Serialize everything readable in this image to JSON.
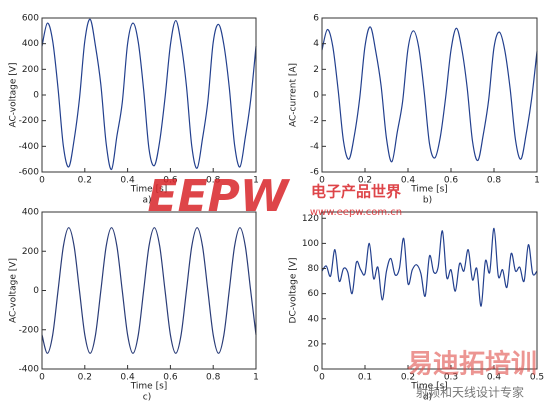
{
  "chart_data": [
    {
      "type": "line",
      "ylabel": "AC-voltage [V]",
      "xlabel": "Time [s]",
      "caption": "a)",
      "color": "#23408e",
      "xlim": [
        0,
        1
      ],
      "xticks": [
        0,
        0.2,
        0.4,
        0.6,
        0.8,
        1
      ],
      "ylim": [
        -600,
        600
      ],
      "yticks": [
        -600,
        -400,
        -200,
        0,
        200,
        400,
        600
      ],
      "x": [
        0,
        0.025,
        0.05,
        0.075,
        0.1,
        0.125,
        0.15,
        0.175,
        0.2,
        0.225,
        0.25,
        0.275,
        0.3,
        0.325,
        0.35,
        0.375,
        0.4,
        0.425,
        0.45,
        0.475,
        0.5,
        0.525,
        0.55,
        0.575,
        0.6,
        0.625,
        0.65,
        0.675,
        0.7,
        0.725,
        0.75,
        0.775,
        0.8,
        0.825,
        0.85,
        0.875,
        0.9,
        0.925,
        0.95,
        0.975,
        1
      ],
      "values": [
        380,
        560,
        420,
        50,
        -400,
        -560,
        -350,
        -30,
        420,
        590,
        380,
        80,
        -380,
        -580,
        -320,
        -60,
        400,
        560,
        410,
        40,
        -420,
        -550,
        -360,
        -20,
        390,
        580,
        400,
        70,
        -400,
        -570,
        -340,
        -50,
        410,
        550,
        390,
        60,
        -390,
        -560,
        -330,
        -40,
        380
      ]
    },
    {
      "type": "line",
      "ylabel": "AC-current [A]",
      "xlabel": "Time [s]",
      "caption": "b)",
      "color": "#23408e",
      "xlim": [
        0,
        1
      ],
      "xticks": [
        0,
        0.2,
        0.4,
        0.6,
        0.8,
        1
      ],
      "ylim": [
        -6,
        6
      ],
      "yticks": [
        -6,
        -4,
        -2,
        0,
        2,
        4,
        6
      ],
      "x": [
        0,
        0.025,
        0.05,
        0.075,
        0.1,
        0.125,
        0.15,
        0.175,
        0.2,
        0.225,
        0.25,
        0.275,
        0.3,
        0.325,
        0.35,
        0.375,
        0.4,
        0.425,
        0.45,
        0.475,
        0.5,
        0.525,
        0.55,
        0.575,
        0.6,
        0.625,
        0.65,
        0.675,
        0.7,
        0.725,
        0.75,
        0.775,
        0.8,
        0.825,
        0.85,
        0.875,
        0.9,
        0.925,
        0.95,
        0.975,
        1
      ],
      "values": [
        3.5,
        5.1,
        3.8,
        0.4,
        -3.6,
        -5.0,
        -3.2,
        -0.3,
        3.8,
        5.3,
        3.4,
        0.7,
        -3.4,
        -5.2,
        -2.9,
        -0.5,
        3.6,
        5.0,
        3.7,
        0.3,
        -3.8,
        -4.9,
        -3.3,
        -0.2,
        3.5,
        5.2,
        3.6,
        0.6,
        -3.6,
        -5.1,
        -3.1,
        -0.4,
        3.7,
        4.9,
        3.5,
        0.5,
        -3.5,
        -5.0,
        -3.0,
        -0.3,
        3.4
      ]
    },
    {
      "type": "line",
      "ylabel": "AC-voltage [V]",
      "xlabel": "Time [s]",
      "caption": "c)",
      "color": "#2b3d78",
      "xlim": [
        0,
        1
      ],
      "xticks": [
        0,
        0.2,
        0.4,
        0.6,
        0.8,
        1
      ],
      "ylim": [
        -400,
        400
      ],
      "yticks": [
        -400,
        -200,
        0,
        200,
        400
      ],
      "x": [
        0,
        0.025,
        0.05,
        0.075,
        0.1,
        0.125,
        0.15,
        0.175,
        0.2,
        0.225,
        0.25,
        0.275,
        0.3,
        0.325,
        0.35,
        0.375,
        0.4,
        0.425,
        0.45,
        0.475,
        0.5,
        0.525,
        0.55,
        0.575,
        0.6,
        0.625,
        0.65,
        0.675,
        0.7,
        0.725,
        0.75,
        0.775,
        0.8,
        0.825,
        0.85,
        0.875,
        0.9,
        0.925,
        0.95,
        0.975,
        1
      ],
      "values": [
        -226,
        -320,
        -226,
        0,
        226,
        320,
        226,
        0,
        -226,
        -320,
        -226,
        0,
        226,
        320,
        226,
        0,
        -226,
        -320,
        -226,
        0,
        226,
        320,
        226,
        0,
        -226,
        -320,
        -226,
        0,
        226,
        320,
        226,
        0,
        -226,
        -320,
        -226,
        0,
        226,
        320,
        226,
        0,
        -226
      ]
    },
    {
      "type": "line",
      "ylabel": "DC-voltage [V]",
      "xlabel": "Time [s]",
      "caption": "d)",
      "color": "#23408e",
      "xlim": [
        0,
        0.5
      ],
      "xticks": [
        0,
        0.1,
        0.2,
        0.3,
        0.4,
        0.5
      ],
      "ylim": [
        0,
        125
      ],
      "yticks": [
        0,
        20,
        40,
        60,
        80,
        100,
        120
      ],
      "x": [
        0,
        0.01,
        0.02,
        0.03,
        0.04,
        0.05,
        0.06,
        0.07,
        0.08,
        0.09,
        0.1,
        0.11,
        0.12,
        0.13,
        0.14,
        0.15,
        0.16,
        0.17,
        0.18,
        0.19,
        0.2,
        0.21,
        0.22,
        0.23,
        0.24,
        0.25,
        0.26,
        0.27,
        0.28,
        0.29,
        0.3,
        0.31,
        0.32,
        0.33,
        0.34,
        0.35,
        0.36,
        0.37,
        0.38,
        0.39,
        0.4,
        0.41,
        0.42,
        0.43,
        0.44,
        0.45,
        0.46,
        0.47,
        0.48,
        0.49,
        0.5
      ],
      "values": [
        78,
        82,
        74,
        95,
        70,
        80,
        77,
        60,
        85,
        79,
        76,
        100,
        72,
        81,
        55,
        78,
        88,
        75,
        80,
        104,
        68,
        79,
        83,
        76,
        58,
        90,
        77,
        81,
        110,
        73,
        79,
        62,
        84,
        78,
        95,
        71,
        80,
        50,
        86,
        77,
        112,
        74,
        79,
        65,
        92,
        78,
        81,
        70,
        99,
        76,
        78
      ]
    }
  ],
  "watermarks": [
    "EEPW",
    "电子产品世界",
    "www.eepw.com.cn",
    "易迪拓培训",
    "射频和天线设计专家"
  ]
}
